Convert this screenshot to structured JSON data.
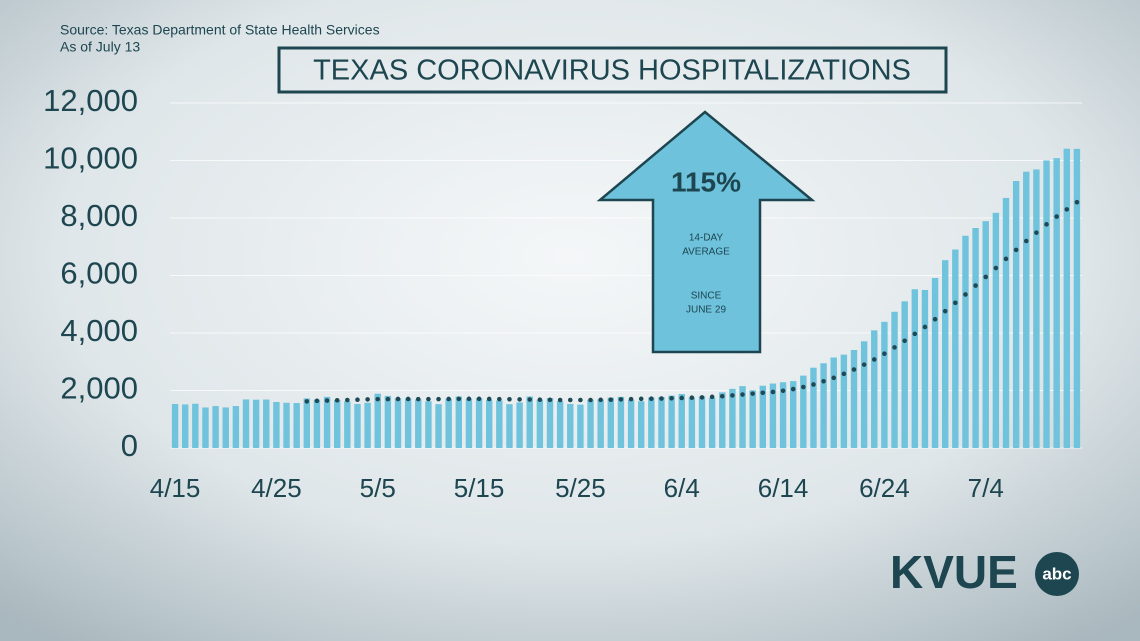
{
  "chart_data": {
    "type": "bar",
    "title": "TEXAS CORONAVIRUS HOSPITALIZATIONS",
    "source": "Source: Texas Department of State Health Services",
    "as_of": "As of July 13",
    "annotation": {
      "value": "115%",
      "line1": "14-DAY",
      "line2": "AVERAGE",
      "line3": "SINCE",
      "line4": "JUNE 29"
    },
    "logo": {
      "text": "KVUE",
      "badge": "abc"
    },
    "categories": [
      "4/15",
      null,
      null,
      null,
      null,
      null,
      null,
      null,
      null,
      null,
      "4/25",
      null,
      null,
      null,
      null,
      null,
      null,
      null,
      null,
      null,
      "5/5",
      null,
      null,
      null,
      null,
      null,
      null,
      null,
      null,
      null,
      "5/15",
      null,
      null,
      null,
      null,
      null,
      null,
      null,
      null,
      null,
      "5/25",
      null,
      null,
      null,
      null,
      null,
      null,
      null,
      null,
      null,
      "6/4",
      null,
      null,
      null,
      null,
      null,
      null,
      null,
      null,
      null,
      "6/14",
      null,
      null,
      null,
      null,
      null,
      null,
      null,
      null,
      null,
      "6/24",
      null,
      null,
      null,
      null,
      null,
      null,
      null,
      null,
      null,
      "7/4",
      null,
      null,
      null,
      null,
      null,
      null,
      null,
      null,
      null
    ],
    "series": [
      {
        "color": "#6fc3dc",
        "values": [
          1532,
          1514,
          1538,
          1409,
          1459,
          1411,
          1459,
          1689,
          1680,
          1686,
          1600,
          1574,
          1563,
          1725,
          1682,
          1778,
          1671,
          1626,
          1533,
          1574,
          1888,
          1812,
          1732,
          1725,
          1688,
          1626,
          1525,
          1716,
          1791,
          1716,
          1734,
          1676,
          1648,
          1525,
          1585,
          1791,
          1676,
          1739,
          1626,
          1534,
          1509,
          1678,
          1687,
          1752,
          1778,
          1672,
          1626,
          1756,
          1773,
          1822,
          1878,
          1756,
          1794,
          1750,
          1935,
          2056,
          2153,
          2008,
          2166,
          2242,
          2287,
          2326,
          2518,
          2793,
          2947,
          3148,
          3247,
          3409,
          3711,
          4092,
          4389,
          4739,
          5102,
          5523,
          5497,
          5913,
          6533,
          6904,
          7382,
          7652,
          7890,
          8181,
          8698,
          9286,
          9610,
          9689,
          10002,
          10083,
          10410,
          10405
        ]
      },
      {
        "type": "dots",
        "color": "#1f4a55",
        "values": [
          null,
          null,
          null,
          null,
          null,
          null,
          null,
          null,
          null,
          null,
          null,
          null,
          null,
          1620,
          1640,
          1650,
          1660,
          1670,
          1680,
          1690,
          1700,
          1700,
          1705,
          1705,
          1700,
          1700,
          1700,
          1705,
          1710,
          1710,
          1710,
          1705,
          1700,
          1695,
          1690,
          1685,
          1680,
          1675,
          1670,
          1670,
          1670,
          1670,
          1675,
          1680,
          1690,
          1700,
          1710,
          1715,
          1720,
          1730,
          1740,
          1750,
          1760,
          1780,
          1800,
          1830,
          1860,
          1890,
          1920,
          1950,
          1990,
          2050,
          2120,
          2210,
          2320,
          2440,
          2580,
          2730,
          2900,
          3080,
          3280,
          3500,
          3730,
          3970,
          4210,
          4480,
          4760,
          5050,
          5340,
          5650,
          5950,
          6260,
          6580,
          6890,
          7200,
          7490,
          7780,
          8050,
          8300,
          8550
        ]
      }
    ],
    "ylim": [
      0,
      12000
    ],
    "yticks": [
      0,
      {
        "value": 2000,
        "label": "2,000"
      },
      {
        "value": 4000,
        "label": "4,000"
      },
      {
        "value": 6000,
        "label": "6,000"
      },
      {
        "value": 8000,
        "label": "8,000"
      },
      {
        "value": 10000,
        "label": "10,000"
      },
      {
        "value": 12000,
        "label": "12,000"
      }
    ],
    "grid": true
  }
}
